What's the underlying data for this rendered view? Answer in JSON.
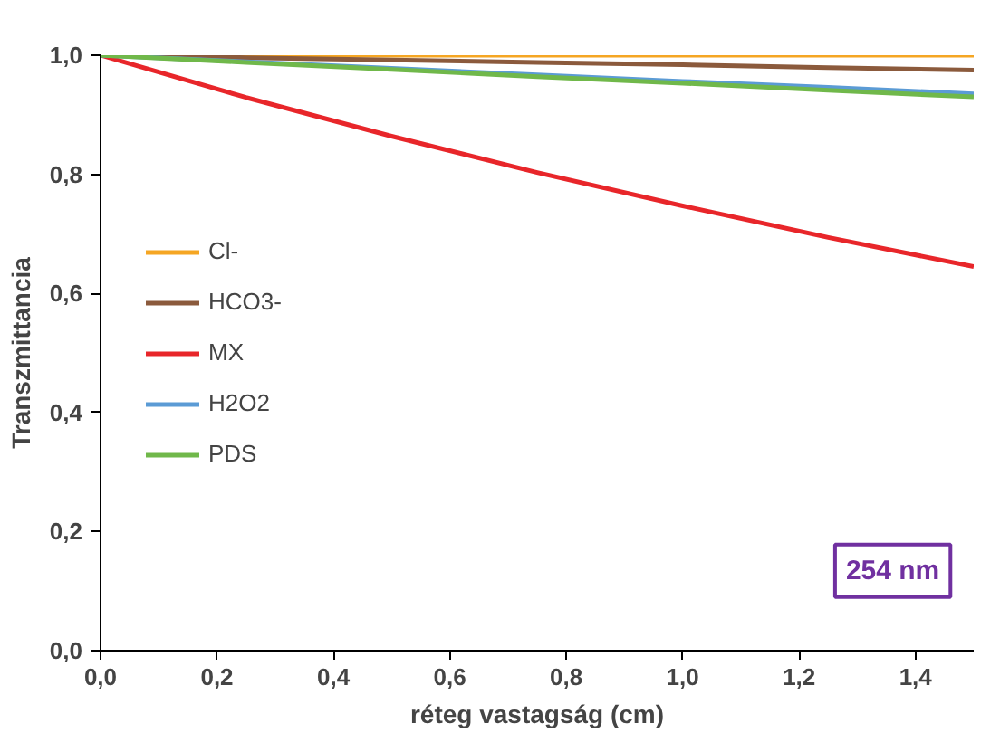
{
  "chart_data": {
    "type": "line",
    "xlabel": "réteg vastagság (cm)",
    "ylabel": "Transzmittancia",
    "x": [
      0,
      0.25,
      0.5,
      0.75,
      1.0,
      1.25,
      1.5
    ],
    "series": [
      {
        "name": "Cl-",
        "color": "#f5a623",
        "values": [
          1.0,
          1.0,
          1.0,
          1.0,
          1.0,
          1.0,
          1.0
        ]
      },
      {
        "name": "HCO3-",
        "color": "#8b5a3c",
        "values": [
          1.0,
          0.996,
          0.992,
          0.988,
          0.984,
          0.979,
          0.975
        ]
      },
      {
        "name": "MX",
        "color": "#e8262a",
        "values": [
          1.0,
          0.929,
          0.864,
          0.803,
          0.747,
          0.694,
          0.645
        ]
      },
      {
        "name": "H2O2",
        "color": "#5b9bd5",
        "values": [
          1.0,
          0.989,
          0.978,
          0.967,
          0.956,
          0.946,
          0.935
        ]
      },
      {
        "name": "PDS",
        "color": "#70b84a",
        "values": [
          1.0,
          0.988,
          0.976,
          0.964,
          0.953,
          0.941,
          0.93
        ]
      }
    ],
    "xlim": [
      0,
      1.5
    ],
    "ylim": [
      0,
      1.0
    ],
    "xticks": [
      {
        "value": 0,
        "label": "0,0"
      },
      {
        "value": 0.2,
        "label": "0,2"
      },
      {
        "value": 0.4,
        "label": "0,4"
      },
      {
        "value": 0.6,
        "label": "0,6"
      },
      {
        "value": 0.8,
        "label": "0,8"
      },
      {
        "value": 1.0,
        "label": "1,0"
      },
      {
        "value": 1.2,
        "label": "1,2"
      },
      {
        "value": 1.4,
        "label": "1,4"
      }
    ],
    "yticks": [
      {
        "value": 0,
        "label": "0,0"
      },
      {
        "value": 0.2,
        "label": "0,2"
      },
      {
        "value": 0.4,
        "label": "0,4"
      },
      {
        "value": 0.6,
        "label": "0,6"
      },
      {
        "value": 0.8,
        "label": "0,8"
      },
      {
        "value": 1.0,
        "label": "1,0"
      }
    ],
    "annotations": [
      "254 nm"
    ],
    "legend": "left",
    "grid": false,
    "marker": "none",
    "line_style": "solid"
  }
}
